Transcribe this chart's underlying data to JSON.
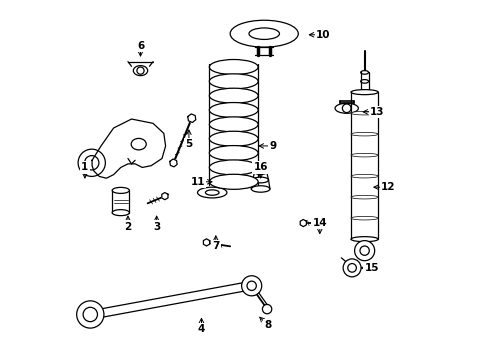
{
  "background_color": "#ffffff",
  "line_color": "#000000",
  "figsize": [
    4.89,
    3.6
  ],
  "dpi": 100,
  "label_positions": {
    "1": [
      0.055,
      0.535,
      0.0,
      -0.04
    ],
    "2": [
      0.175,
      0.37,
      0.0,
      0.04
    ],
    "3": [
      0.255,
      0.37,
      0.0,
      0.04
    ],
    "4": [
      0.38,
      0.085,
      0.0,
      0.04
    ],
    "5": [
      0.345,
      0.6,
      0.0,
      0.05
    ],
    "6": [
      0.21,
      0.875,
      0.0,
      -0.04
    ],
    "7": [
      0.42,
      0.315,
      0.0,
      0.04
    ],
    "8": [
      0.565,
      0.095,
      -0.03,
      0.03
    ],
    "9": [
      0.58,
      0.595,
      -0.05,
      0.0
    ],
    "10": [
      0.72,
      0.905,
      -0.05,
      0.0
    ],
    "11": [
      0.37,
      0.495,
      0.05,
      0.0
    ],
    "12": [
      0.9,
      0.48,
      -0.05,
      0.0
    ],
    "13": [
      0.87,
      0.69,
      -0.05,
      0.0
    ],
    "14": [
      0.71,
      0.38,
      0.0,
      -0.04
    ],
    "15": [
      0.855,
      0.255,
      -0.04,
      0.0
    ],
    "16": [
      0.545,
      0.535,
      0.0,
      -0.04
    ]
  }
}
